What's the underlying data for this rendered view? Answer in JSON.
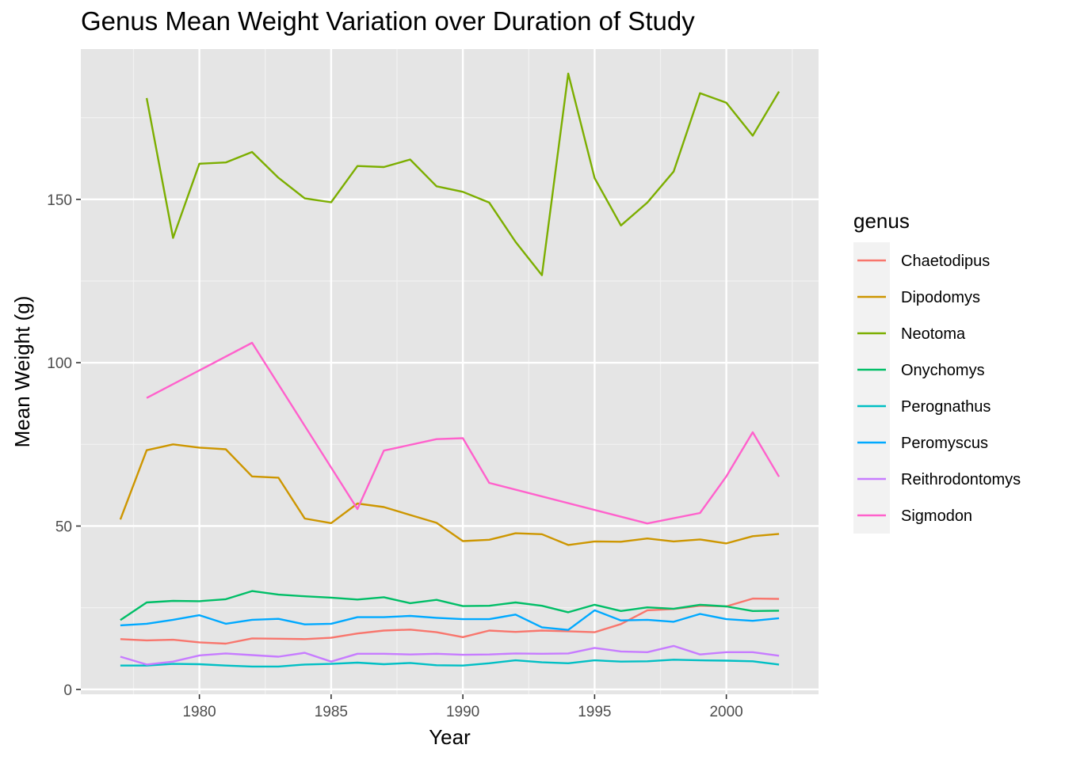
{
  "chart_data": {
    "type": "line",
    "title": "Genus Mean Weight Variation over Duration of Study",
    "xlabel": "Year",
    "ylabel": "Mean Weight (g)",
    "xlim": [
      1975.5,
      2003.5
    ],
    "ylim": [
      -1.5,
      196
    ],
    "x_ticks": [
      1980,
      1985,
      1990,
      1995,
      2000
    ],
    "x_tick_labels": [
      "1980",
      "1985",
      "1990",
      "1995",
      "2000"
    ],
    "y_ticks": [
      0,
      50,
      100,
      150
    ],
    "y_tick_labels": [
      "0",
      "50",
      "100",
      "150"
    ],
    "panel_background": "#e5e5e5",
    "grid": true,
    "legend_title": "genus",
    "legend_position": "right",
    "series": [
      {
        "name": "Chaetodipus",
        "color": "#f8766d",
        "x": [
          1977,
          1978,
          1979,
          1980,
          1981,
          1982,
          1983,
          1984,
          1985,
          1986,
          1987,
          1988,
          1989,
          1990,
          1991,
          1992,
          1993,
          1994,
          1995,
          1996,
          1997,
          1998,
          1999,
          2000,
          2001,
          2002
        ],
        "y": [
          15.4,
          15.0,
          15.2,
          14.4,
          14.0,
          15.6,
          15.5,
          15.4,
          15.8,
          17.1,
          18.0,
          18.3,
          17.5,
          16.0,
          18.0,
          17.6,
          18.0,
          17.8,
          17.5,
          20.0,
          24.2,
          24.6,
          25.6,
          25.4,
          27.8,
          27.7
        ]
      },
      {
        "name": "Dipodomys",
        "color": "#cd9600",
        "x": [
          1977,
          1978,
          1979,
          1980,
          1981,
          1982,
          1983,
          1984,
          1985,
          1986,
          1987,
          1988,
          1989,
          1990,
          1991,
          1992,
          1993,
          1994,
          1995,
          1996,
          1997,
          1998,
          1999,
          2000,
          2001,
          2002
        ],
        "y": [
          52.0,
          73.2,
          75.0,
          74.0,
          73.5,
          65.2,
          64.8,
          52.3,
          50.9,
          56.9,
          55.8,
          53.4,
          51.0,
          45.4,
          45.8,
          47.8,
          47.5,
          44.2,
          45.3,
          45.2,
          46.2,
          45.3,
          45.9,
          44.7,
          46.9,
          47.6
        ]
      },
      {
        "name": "Neotoma",
        "color": "#7cae00",
        "x": [
          1978,
          1979,
          1980,
          1981,
          1982,
          1983,
          1984,
          1985,
          1986,
          1987,
          1988,
          1989,
          1990,
          1991,
          1992,
          1993,
          1994,
          1995,
          1996,
          1997,
          1998,
          1999,
          2000,
          2001,
          2002
        ],
        "y": [
          181.0,
          138.2,
          160.9,
          161.3,
          164.5,
          156.6,
          150.3,
          149.1,
          160.2,
          159.9,
          162.2,
          154.0,
          152.3,
          149.0,
          137.0,
          126.8,
          188.5,
          156.5,
          142.0,
          149.0,
          158.5,
          182.5,
          179.6,
          169.5,
          183.0
        ]
      },
      {
        "name": "Onychomys",
        "color": "#00be67",
        "x": [
          1977,
          1978,
          1979,
          1980,
          1981,
          1982,
          1983,
          1984,
          1985,
          1986,
          1987,
          1988,
          1989,
          1990,
          1991,
          1992,
          1993,
          1994,
          1995,
          1996,
          1997,
          1998,
          1999,
          2000,
          2001,
          2002
        ],
        "y": [
          21.2,
          26.6,
          27.1,
          27.0,
          27.6,
          30.1,
          29.0,
          28.5,
          28.1,
          27.5,
          28.2,
          26.4,
          27.4,
          25.5,
          25.6,
          26.6,
          25.6,
          23.6,
          25.9,
          24.0,
          25.1,
          24.7,
          25.9,
          25.4,
          24.0,
          24.1
        ]
      },
      {
        "name": "Perognathus",
        "color": "#00bfc4",
        "x": [
          1977,
          1978,
          1979,
          1980,
          1981,
          1982,
          1983,
          1984,
          1985,
          1986,
          1987,
          1988,
          1989,
          1990,
          1991,
          1992,
          1993,
          1994,
          1995,
          1996,
          1997,
          1998,
          1999,
          2000,
          2001,
          2002
        ],
        "y": [
          7.3,
          7.3,
          7.8,
          7.7,
          7.3,
          7.0,
          7.0,
          7.6,
          7.8,
          8.2,
          7.7,
          8.1,
          7.4,
          7.3,
          8.0,
          8.9,
          8.3,
          8.0,
          8.9,
          8.5,
          8.6,
          9.1,
          8.9,
          8.8,
          8.6,
          7.6
        ]
      },
      {
        "name": "Peromyscus",
        "color": "#00a9ff",
        "x": [
          1977,
          1978,
          1979,
          1980,
          1981,
          1982,
          1983,
          1984,
          1985,
          1986,
          1987,
          1988,
          1989,
          1990,
          1991,
          1992,
          1993,
          1994,
          1995,
          1996,
          1997,
          1998,
          1999,
          2000,
          2001,
          2002
        ],
        "y": [
          19.6,
          20.1,
          21.3,
          22.7,
          20.1,
          21.3,
          21.6,
          19.9,
          20.1,
          22.1,
          22.1,
          22.5,
          21.9,
          21.5,
          21.5,
          22.9,
          19.0,
          18.2,
          24.2,
          21.1,
          21.3,
          20.7,
          23.1,
          21.5,
          21.0,
          21.8
        ]
      },
      {
        "name": "Reithrodontomys",
        "color": "#c77cff",
        "x": [
          1977,
          1978,
          1979,
          1980,
          1981,
          1982,
          1983,
          1984,
          1985,
          1986,
          1987,
          1988,
          1989,
          1990,
          1991,
          1992,
          1993,
          1994,
          1995,
          1996,
          1997,
          1998,
          1999,
          2000,
          2001,
          2002
        ],
        "y": [
          10.0,
          7.6,
          8.5,
          10.4,
          11.0,
          10.5,
          10.0,
          11.2,
          8.5,
          10.9,
          10.9,
          10.7,
          10.9,
          10.6,
          10.7,
          11.0,
          10.9,
          11.0,
          12.7,
          11.6,
          11.4,
          13.3,
          10.7,
          11.4,
          11.4,
          10.3
        ]
      },
      {
        "name": "Sigmodon",
        "color": "#ff61cc",
        "x": [
          1978,
          1982,
          1986,
          1987,
          1989,
          1990,
          1991,
          1997,
          1999,
          2000,
          2001,
          2002
        ],
        "y": [
          89.2,
          106.1,
          55.2,
          73.1,
          76.6,
          76.9,
          63.2,
          50.8,
          54.0,
          65.2,
          78.7,
          65.1
        ]
      }
    ]
  }
}
